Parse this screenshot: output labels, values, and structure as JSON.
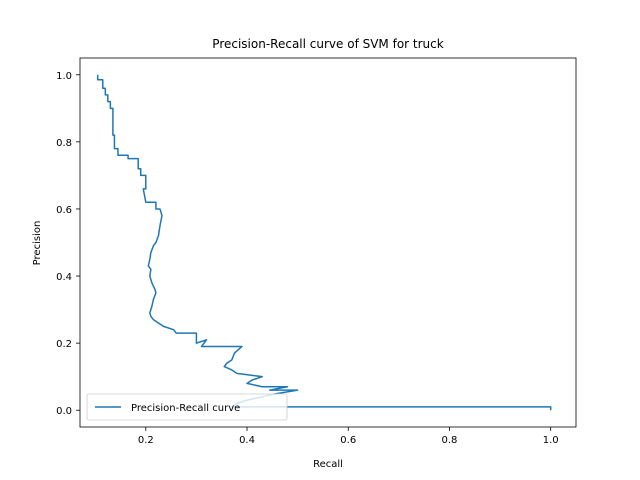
{
  "chart_data": {
    "type": "line",
    "title": "Precision-Recall curve of SVM for truck",
    "xlabel": "Recall",
    "ylabel": "Precision",
    "xlim": [
      0.07,
      1.05
    ],
    "ylim": [
      -0.05,
      1.05
    ],
    "xticks": [
      0.2,
      0.4,
      0.6,
      0.8,
      1.0
    ],
    "xtick_labels": [
      "0.2",
      "0.4",
      "0.6",
      "0.8",
      "1.0"
    ],
    "yticks": [
      0.0,
      0.2,
      0.4,
      0.6,
      0.8,
      1.0
    ],
    "ytick_labels": [
      "0.0",
      "0.2",
      "0.4",
      "0.6",
      "0.8",
      "1.0"
    ],
    "grid": false,
    "legend": {
      "position": "lower left"
    },
    "color": "#1f77b4",
    "series": [
      {
        "name": "Precision-Recall curve",
        "points": [
          [
            0.105,
            1.0
          ],
          [
            0.105,
            0.985
          ],
          [
            0.115,
            0.985
          ],
          [
            0.115,
            0.96
          ],
          [
            0.12,
            0.96
          ],
          [
            0.12,
            0.94
          ],
          [
            0.125,
            0.94
          ],
          [
            0.125,
            0.92
          ],
          [
            0.13,
            0.92
          ],
          [
            0.13,
            0.9
          ],
          [
            0.135,
            0.9
          ],
          [
            0.135,
            0.82
          ],
          [
            0.138,
            0.82
          ],
          [
            0.138,
            0.78
          ],
          [
            0.145,
            0.78
          ],
          [
            0.145,
            0.76
          ],
          [
            0.165,
            0.76
          ],
          [
            0.165,
            0.75
          ],
          [
            0.185,
            0.75
          ],
          [
            0.185,
            0.72
          ],
          [
            0.19,
            0.72
          ],
          [
            0.19,
            0.7
          ],
          [
            0.2,
            0.7
          ],
          [
            0.2,
            0.66
          ],
          [
            0.195,
            0.66
          ],
          [
            0.2,
            0.62
          ],
          [
            0.22,
            0.62
          ],
          [
            0.22,
            0.6
          ],
          [
            0.228,
            0.6
          ],
          [
            0.232,
            0.58
          ],
          [
            0.228,
            0.55
          ],
          [
            0.225,
            0.52
          ],
          [
            0.22,
            0.5
          ],
          [
            0.215,
            0.49
          ],
          [
            0.21,
            0.47
          ],
          [
            0.208,
            0.45
          ],
          [
            0.205,
            0.43
          ],
          [
            0.21,
            0.42
          ],
          [
            0.208,
            0.4
          ],
          [
            0.212,
            0.38
          ],
          [
            0.215,
            0.37
          ],
          [
            0.218,
            0.36
          ],
          [
            0.22,
            0.35
          ],
          [
            0.215,
            0.33
          ],
          [
            0.212,
            0.31
          ],
          [
            0.208,
            0.29
          ],
          [
            0.21,
            0.28
          ],
          [
            0.215,
            0.27
          ],
          [
            0.225,
            0.26
          ],
          [
            0.235,
            0.25
          ],
          [
            0.255,
            0.24
          ],
          [
            0.26,
            0.23
          ],
          [
            0.3,
            0.23
          ],
          [
            0.3,
            0.2
          ],
          [
            0.32,
            0.21
          ],
          [
            0.31,
            0.19
          ],
          [
            0.35,
            0.19
          ],
          [
            0.39,
            0.19
          ],
          [
            0.375,
            0.17
          ],
          [
            0.37,
            0.15
          ],
          [
            0.36,
            0.14
          ],
          [
            0.355,
            0.13
          ],
          [
            0.37,
            0.12
          ],
          [
            0.38,
            0.11
          ],
          [
            0.43,
            0.1
          ],
          [
            0.41,
            0.09
          ],
          [
            0.4,
            0.08
          ],
          [
            0.43,
            0.07
          ],
          [
            0.48,
            0.07
          ],
          [
            0.445,
            0.06
          ],
          [
            0.5,
            0.06
          ],
          [
            0.46,
            0.05
          ],
          [
            0.43,
            0.04
          ],
          [
            0.4,
            0.03
          ],
          [
            0.38,
            0.02
          ],
          [
            0.37,
            0.01
          ],
          [
            1.0,
            0.01
          ],
          [
            1.0,
            0.0
          ]
        ]
      }
    ]
  }
}
